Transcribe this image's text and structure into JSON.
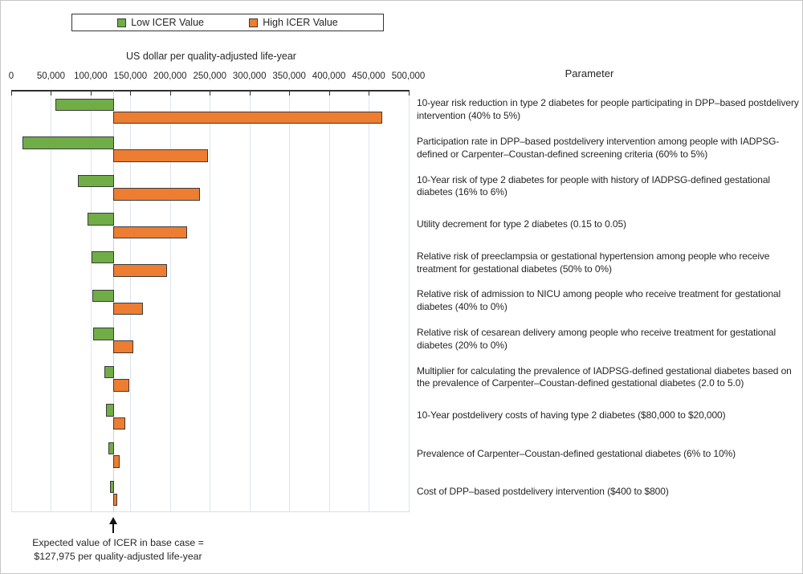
{
  "legend": {
    "items": [
      {
        "name": "low",
        "label": "Low ICER Value",
        "color": "#70AD47"
      },
      {
        "name": "high",
        "label": "High ICER Value",
        "color": "#ED7D31"
      }
    ]
  },
  "axis_title": "US dollar per quality-adjusted life-year",
  "parameter_header": "Parameter",
  "annotation": {
    "line1": "Expected value of ICER in base case =",
    "line2": "$127,975 per quality-adjusted life-year"
  },
  "colors": {
    "low_bar": "#70AD47",
    "high_bar": "#ED7D31",
    "bar_border": "#3b3b3b",
    "gridline": "#dde4f0"
  },
  "chart_data": {
    "type": "bar",
    "subtype": "tornado",
    "orientation": "horizontal",
    "title": "",
    "xlabel": "US dollar per quality-adjusted life-year",
    "ylabel": "Parameter",
    "xlim": [
      0,
      500000
    ],
    "grid": true,
    "legend_position": "top",
    "base_case_value": 127975,
    "xticks": [
      0,
      50000,
      100000,
      150000,
      200000,
      250000,
      300000,
      350000,
      400000,
      450000,
      500000
    ],
    "xtick_labels": [
      "0",
      "50,000",
      "100,000",
      "150,000",
      "200,000",
      "250,000",
      "300,000",
      "350,000",
      "400,000",
      "450,000",
      "500,000"
    ],
    "categories": [
      "10-year risk reduction in type 2 diabetes for people participating in DPP–based postdelivery intervention (40% to 5%)",
      "Participation rate in DPP–based postdelivery intervention among people with IADPSG-defined or Carpenter–Coustan-defined screening criteria (60% to 5%)",
      "10-Year risk of type 2 diabetes for people with history of IADPSG-defined gestational diabetes (16% to 6%)",
      "Utility decrement for type 2 diabetes (0.15 to 0.05)",
      "Relative risk of preeclampsia or gestational hypertension among people who receive treatment for gestational diabetes (50% to 0%)",
      "Relative risk of admission to NICU among people who receive treatment for gestational diabetes (40% to 0%)",
      "Relative risk of cesarean delivery among people who receive treatment for gestational diabetes (20% to 0%)",
      "Multiplier for calculating the prevalence of IADPSG-defined gestational diabetes based on the prevalence of Carpenter–Coustan-defined gestational diabetes  (2.0 to 5.0)",
      "10-Year postdelivery costs of having type 2 diabetes ($80,000 to $20,000)",
      "Prevalence of Carpenter–Coustan-defined gestational diabetes (6% to 10%)",
      "Cost of DPP–based postdelivery intervention ($400 to $800)"
    ],
    "series": [
      {
        "name": "Low ICER Value",
        "color": "#70AD47",
        "values": [
          56000,
          14000,
          84000,
          96000,
          101000,
          102000,
          103000,
          117000,
          119000,
          122500,
          124500
        ]
      },
      {
        "name": "High ICER Value",
        "color": "#ED7D31",
        "values": [
          466000,
          247000,
          237000,
          220000,
          195000,
          165000,
          153000,
          148000,
          143000,
          135500,
          132500
        ]
      }
    ]
  }
}
